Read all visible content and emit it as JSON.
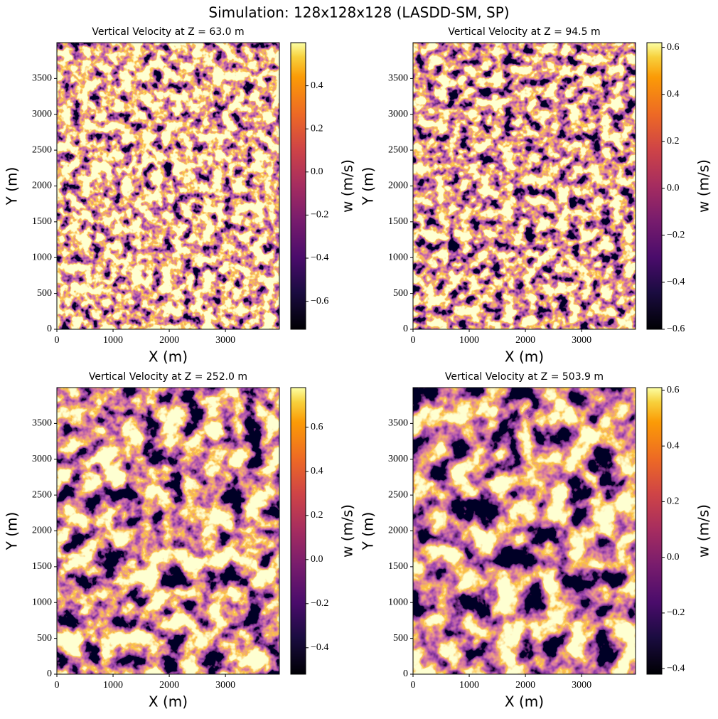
{
  "title": "Simulation: 128x128x128 (LASDD-SM, SP)",
  "chart_data": [
    {
      "type": "heatmap",
      "title": "Vertical Velocity at Z = 63.0 m",
      "xlabel": "X (m)",
      "ylabel": "Y (m)",
      "xlim": [
        0,
        3960
      ],
      "ylim": [
        0,
        4000
      ],
      "xticks": [
        0,
        1000,
        2000,
        3000
      ],
      "yticks": [
        0,
        500,
        1000,
        1500,
        2000,
        2500,
        3000,
        3500
      ],
      "colorbar_label": "w (m/s)",
      "clim": [
        -0.73,
        0.6
      ],
      "cticks": [
        {
          "value": -0.6,
          "label": "−0.6"
        },
        {
          "value": -0.4,
          "label": "−0.4"
        },
        {
          "value": -0.2,
          "label": "−0.2"
        },
        {
          "value": 0,
          "label": "0.0"
        },
        0.2,
        0.4
      ]
    },
    {
      "type": "heatmap",
      "title": "Vertical Velocity at Z = 94.5 m",
      "xlabel": "X (m)",
      "ylabel": "Y (m)",
      "xlim": [
        0,
        3960
      ],
      "ylim": [
        0,
        4000
      ],
      "xticks": [
        0,
        1000,
        2000,
        3000
      ],
      "yticks": [
        0,
        500,
        1000,
        1500,
        2000,
        2500,
        3000,
        3500
      ],
      "colorbar_label": "w (m/s)",
      "clim": [
        -0.6,
        0.62
      ],
      "cticks": [
        {
          "value": -0.6,
          "label": "−0.6"
        },
        {
          "value": -0.4,
          "label": "−0.4"
        },
        {
          "value": -0.2,
          "label": "−0.2"
        },
        {
          "value": 0,
          "label": "0.0"
        },
        0.2,
        0.4,
        0.6
      ]
    },
    {
      "type": "heatmap",
      "title": "Vertical Velocity at Z = 252.0 m",
      "xlabel": "X (m)",
      "ylabel": "Y (m)",
      "xlim": [
        0,
        3960
      ],
      "ylim": [
        0,
        4000
      ],
      "xticks": [
        0,
        1000,
        2000,
        3000
      ],
      "yticks": [
        0,
        500,
        1000,
        1500,
        2000,
        2500,
        3000,
        3500
      ],
      "colorbar_label": "w (m/s)",
      "clim": [
        -0.52,
        0.78
      ],
      "cticks": [
        {
          "value": -0.4,
          "label": "−0.4"
        },
        {
          "value": -0.2,
          "label": "−0.2"
        },
        {
          "value": 0,
          "label": "0.0"
        },
        0.2,
        0.4,
        0.6
      ]
    },
    {
      "type": "heatmap",
      "title": "Vertical Velocity at Z = 503.9 m",
      "xlabel": "X (m)",
      "ylabel": "Y (m)",
      "xlim": [
        0,
        3960
      ],
      "ylim": [
        0,
        4000
      ],
      "xticks": [
        0,
        1000,
        2000,
        3000
      ],
      "yticks": [
        0,
        500,
        1000,
        1500,
        2000,
        2500,
        3000,
        3500
      ],
      "colorbar_label": "w (m/s)",
      "clim": [
        -0.42,
        0.61
      ],
      "cticks": [
        {
          "value": -0.4,
          "label": "−0.4"
        },
        {
          "value": -0.2,
          "label": "−0.2"
        },
        {
          "value": 0,
          "label": "0.0"
        },
        0.2,
        0.4,
        0.6
      ]
    }
  ]
}
